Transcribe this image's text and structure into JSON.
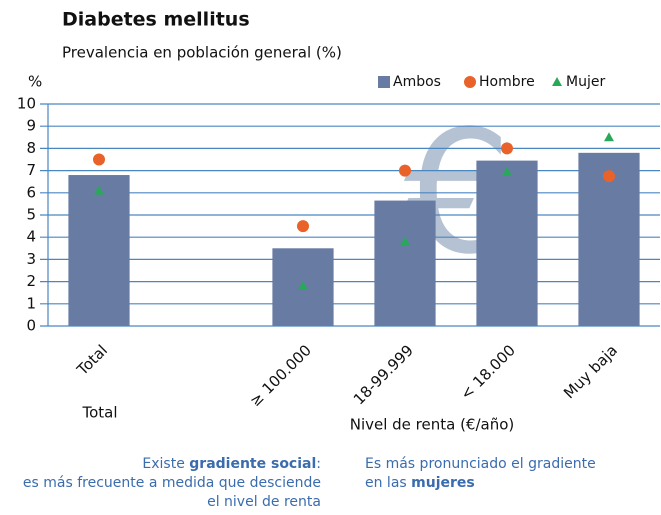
{
  "chart_data": {
    "type": "bar",
    "title": "Diabetes mellitus",
    "subtitle": "Prevalencia en población general (%)",
    "ylabel": "%",
    "xlabel": "Nivel de renta (€/año)",
    "x_group_label": "Total",
    "watermark": "€",
    "categories": [
      "Total",
      null,
      "≥ 100.000",
      "18-99.999",
      "< 18.000",
      "Muy baja"
    ],
    "series": [
      {
        "name": "Ambos",
        "color": "#687ba3",
        "marker": "bar",
        "values": [
          6.8,
          null,
          3.5,
          5.65,
          7.45,
          7.8
        ]
      },
      {
        "name": "Hombre",
        "color": "#e8622a",
        "marker": "circle",
        "values": [
          7.5,
          null,
          4.5,
          7.0,
          8.0,
          6.75
        ]
      },
      {
        "name": "Mujer",
        "color": "#2aa85a",
        "marker": "triangle",
        "values": [
          6.1,
          null,
          1.8,
          3.8,
          6.95,
          8.5
        ]
      }
    ],
    "ylim": [
      0,
      10
    ],
    "yticks": [
      0,
      1,
      2,
      3,
      4,
      5,
      6,
      7,
      8,
      9,
      10
    ],
    "grid": true,
    "legend": "top-right",
    "notes": [
      [
        [
          {
            "text": "Existe ",
            "bold": false
          },
          {
            "text": "gradiente social",
            "bold": true
          },
          {
            "text": ":",
            "bold": false
          }
        ],
        [
          {
            "text": "es más frecuente a medida que desciende",
            "bold": false
          }
        ],
        [
          {
            "text": "el nivel de renta",
            "bold": false
          }
        ]
      ],
      [
        [
          {
            "text": "Es más pronunciado el gradiente",
            "bold": false
          }
        ],
        [
          {
            "text": "en las ",
            "bold": false
          },
          {
            "text": "mujeres",
            "bold": true
          }
        ]
      ]
    ]
  }
}
